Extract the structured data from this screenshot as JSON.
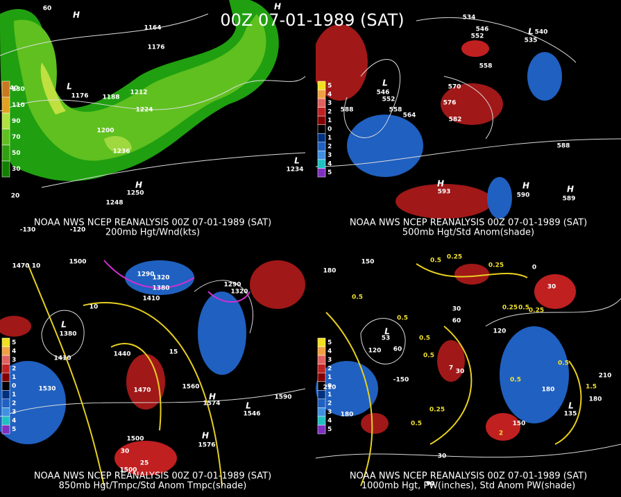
{
  "title": "00Z 07-01-1989 (SAT)",
  "panels": [
    {
      "caption": "NOAA NWS NCEP REANALYSIS 00Z 07-01-1989 (SAT)",
      "subtitle": "200mb Hgt/Wnd(kts)",
      "colorbar": {
        "labels": [
          "130",
          "110",
          "90",
          "70",
          "50",
          "30"
        ],
        "colors": [
          "#c87820",
          "#e0a020",
          "#b0e040",
          "#60c020",
          "#30a010",
          "#108000"
        ]
      },
      "labels": [
        "H",
        "1164",
        "1176",
        "L",
        "1176",
        "1188",
        "1212",
        "1224",
        "1200",
        "1236",
        "H",
        "1250",
        "1248",
        "L",
        "1234",
        "H",
        "60",
        "40",
        "20",
        "-130",
        "-120"
      ]
    },
    {
      "caption": "NOAA NWS NCEP REANALYSIS 00Z 07-01-1989 (SAT)",
      "subtitle": "500mb Hgt/Std Anom(shade)",
      "colorbar": {
        "labels": [
          "5",
          "4",
          "3",
          "2",
          "1",
          "0",
          "1",
          "2",
          "3",
          "4",
          "5"
        ],
        "colors": [
          "#f0e020",
          "#f0a040",
          "#e06060",
          "#c02020",
          "#800000",
          "#000000",
          "#003080",
          "#2060c0",
          "#4090e0",
          "#20c0c0",
          "#8030c0"
        ]
      },
      "labels": [
        "588",
        "L",
        "546",
        "552",
        "558",
        "564",
        "570",
        "576",
        "582",
        "558",
        "534",
        "546",
        "552",
        "L",
        "540",
        "535",
        "588",
        "H",
        "590",
        "H",
        "589",
        "H",
        "593"
      ]
    },
    {
      "caption": "NOAA NWS NCEP REANALYSIS 00Z 07-01-1989 (SAT)",
      "subtitle": "850mb Hgt/Tmpc/Std Anom Tmpc(shade)",
      "colorbar": {
        "labels": [
          "5",
          "4",
          "3",
          "2",
          "1",
          "0",
          "1",
          "2",
          "3",
          "4",
          "5"
        ],
        "colors": [
          "#f0e020",
          "#f0a040",
          "#e06060",
          "#c02020",
          "#800000",
          "#000000",
          "#003080",
          "#2060c0",
          "#4090e0",
          "#20c0c0",
          "#8030c0"
        ]
      },
      "labels": [
        "1470",
        "10",
        "1500",
        "1290",
        "1320",
        "1380",
        "1410",
        "1290",
        "1320",
        "10",
        "L",
        "1380",
        "1410",
        "1440",
        "15",
        "1530",
        "1470",
        "1560",
        "H",
        "1574",
        "1590",
        "L",
        "1546",
        "1500",
        "H",
        "1576",
        "30",
        "25",
        "1500"
      ]
    },
    {
      "caption": "NOAA NWS NCEP REANALYSIS 00Z 07-01-1989 (SAT)",
      "subtitle": "1000mb Hgt, PW(inches), Std Anom PW(shade)",
      "colorbar": {
        "labels": [
          "5",
          "4",
          "3",
          "2",
          "1",
          "0",
          "1",
          "2",
          "3",
          "4",
          "5"
        ],
        "colors": [
          "#f0e020",
          "#f0a040",
          "#e06060",
          "#c02020",
          "#800000",
          "#000000",
          "#003080",
          "#2060c0",
          "#4090e0",
          "#20c0c0",
          "#8030c0"
        ]
      },
      "labels": [
        "180",
        "150",
        "0.5",
        "0.25",
        "0.25",
        "0",
        "30",
        "0.5",
        "30",
        "60",
        "0.5",
        "0.25",
        "0.5",
        "0.25",
        "120",
        "L",
        "53",
        "120",
        "60",
        "0.5",
        "0.5",
        "7",
        "30",
        "-150",
        "0.5",
        "0.5",
        "210",
        "1.5",
        "180",
        "210",
        "180",
        "0.25",
        "0.5",
        "150",
        "L",
        "135",
        "2",
        "180",
        "90",
        "30"
      ]
    }
  ]
}
